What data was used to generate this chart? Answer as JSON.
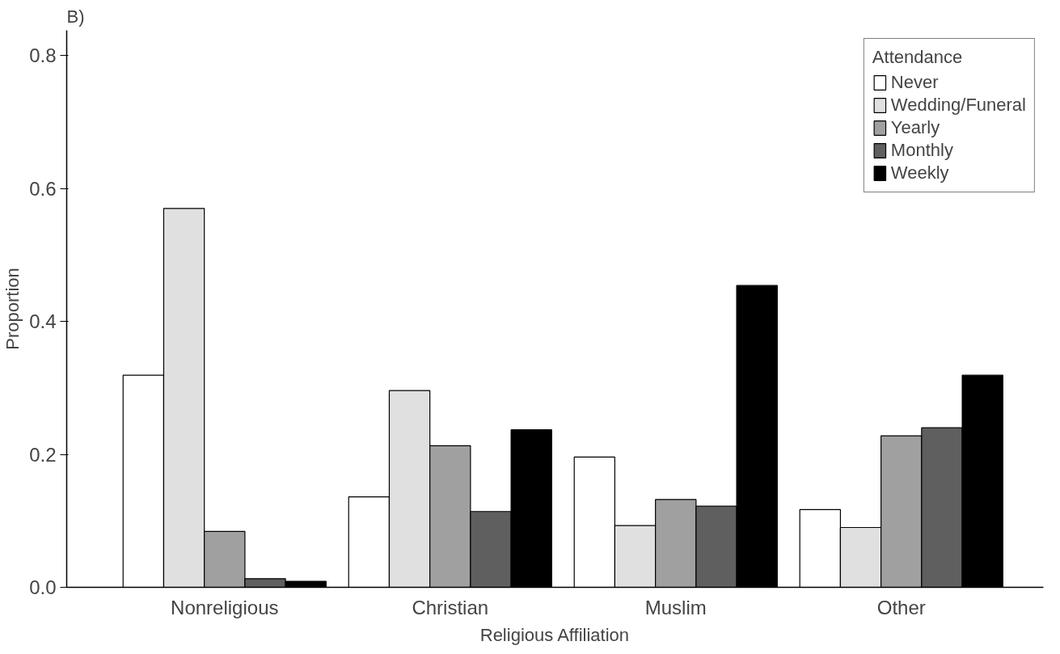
{
  "chart_data": {
    "type": "bar",
    "title": "B)",
    "xlabel": "Religious Affiliation",
    "ylabel": "Proportion",
    "legend_title": "Attendance",
    "categories": [
      "Nonreligious",
      "Christian",
      "Muslim",
      "Other"
    ],
    "series": [
      {
        "name": "Never",
        "color": "#ffffff",
        "values": [
          0.319,
          0.136,
          0.196,
          0.117
        ]
      },
      {
        "name": "Wedding/Funeral",
        "color": "#e0e0e0",
        "values": [
          0.57,
          0.296,
          0.093,
          0.09
        ]
      },
      {
        "name": "Yearly",
        "color": "#a0a0a0",
        "values": [
          0.084,
          0.213,
          0.132,
          0.228
        ]
      },
      {
        "name": "Monthly",
        "color": "#5f5f5f",
        "values": [
          0.013,
          0.114,
          0.122,
          0.24
        ]
      },
      {
        "name": "Weekly",
        "color": "#000000",
        "values": [
          0.009,
          0.237,
          0.454,
          0.319
        ]
      }
    ],
    "ylim": [
      0,
      0.838
    ],
    "yticks": [
      {
        "value": 0,
        "label": "0.0"
      },
      {
        "value": 0.2,
        "label": "0.2"
      },
      {
        "value": 0.4,
        "label": "0.4"
      },
      {
        "value": 0.6,
        "label": "0.6"
      },
      {
        "value": 0.8,
        "label": "0.8"
      }
    ],
    "grid": false,
    "legend": "top right"
  }
}
